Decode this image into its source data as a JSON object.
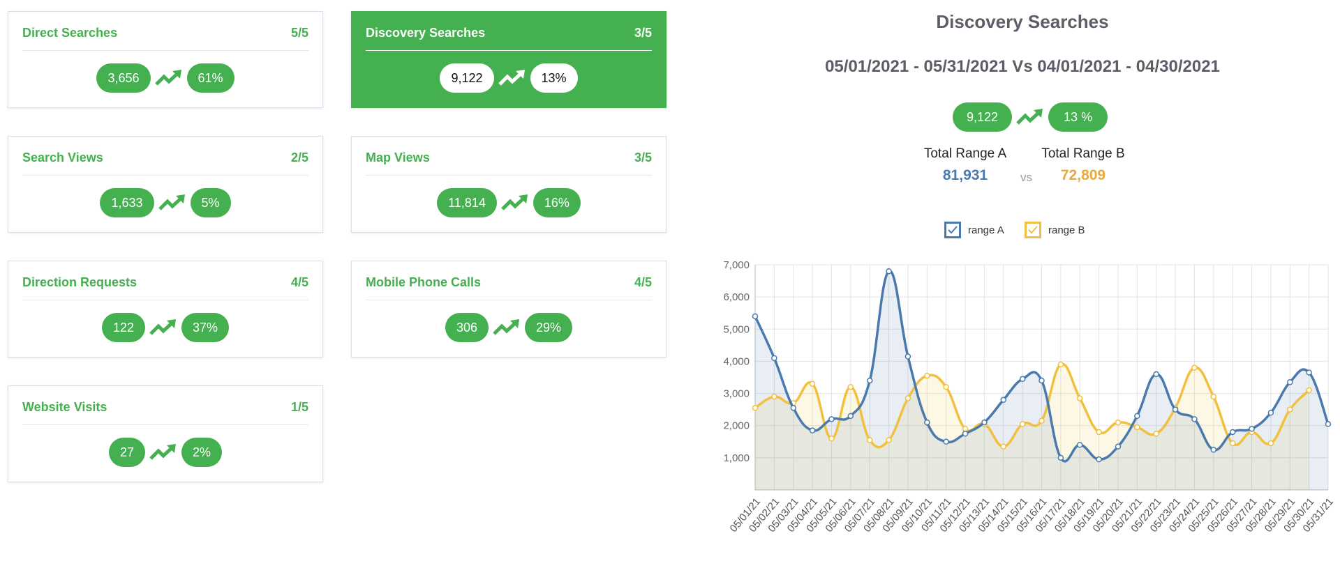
{
  "cards": [
    {
      "title": "Direct Searches",
      "score": "5/5",
      "value": "3,656",
      "change": "61%"
    },
    {
      "title": "Discovery Searches",
      "score": "3/5",
      "value": "9,122",
      "change": "13%"
    },
    {
      "title": "Search Views",
      "score": "2/5",
      "value": "1,633",
      "change": "5%"
    },
    {
      "title": "Map Views",
      "score": "3/5",
      "value": "11,814",
      "change": "16%"
    },
    {
      "title": "Direction Requests",
      "score": "4/5",
      "value": "122",
      "change": "37%"
    },
    {
      "title": "Mobile Phone Calls",
      "score": "4/5",
      "value": "306",
      "change": "29%"
    },
    {
      "title": "Website Visits",
      "score": "1/5",
      "value": "27",
      "change": "2%"
    }
  ],
  "panel": {
    "title": "Discovery Searches",
    "date_range": "05/01/2021 - 05/31/2021 Vs 04/01/2021 - 04/30/2021",
    "value": "9,122",
    "change": "13 %",
    "total_a_label": "Total Range A",
    "total_a": "81,931",
    "vs": "vs",
    "total_b_label": "Total Range B",
    "total_b": "72,809"
  },
  "colors": {
    "green": "#44b04f",
    "range_a": "#4a7aad",
    "range_b": "#f2c03f",
    "total_a": "#4a7aad",
    "total_b": "#e9a93a"
  },
  "chart_data": {
    "type": "line",
    "x": [
      "05/01/21",
      "05/02/21",
      "05/03/21",
      "05/04/21",
      "05/05/21",
      "05/06/21",
      "05/07/21",
      "05/08/21",
      "05/09/21",
      "05/10/21",
      "05/11/21",
      "05/12/21",
      "05/13/21",
      "05/14/21",
      "05/15/21",
      "05/16/21",
      "05/17/21",
      "05/18/21",
      "05/19/21",
      "05/20/21",
      "05/21/21",
      "05/22/21",
      "05/23/21",
      "05/24/21",
      "05/25/21",
      "05/26/21",
      "05/27/21",
      "05/28/21",
      "05/29/21",
      "05/30/21",
      "05/31/21"
    ],
    "series": [
      {
        "name": "range A",
        "values": [
          5400,
          4100,
          2550,
          1850,
          2200,
          2300,
          3400,
          6800,
          4150,
          2100,
          1500,
          1750,
          2100,
          2800,
          3450,
          3400,
          1000,
          1400,
          950,
          1350,
          2300,
          3600,
          2500,
          2200,
          1250,
          1800,
          1900,
          2400,
          3350,
          3650,
          2050
        ]
      },
      {
        "name": "range B",
        "values": [
          2550,
          2900,
          2700,
          3300,
          1600,
          3200,
          1550,
          1550,
          2850,
          3550,
          3200,
          1900,
          2050,
          1350,
          2050,
          2150,
          3900,
          2850,
          1800,
          2100,
          1950,
          1750,
          2550,
          3800,
          2900,
          1450,
          1800,
          1450,
          2500,
          3100,
          null
        ]
      }
    ],
    "yticks": [
      1000,
      2000,
      3000,
      4000,
      5000,
      6000,
      7000
    ],
    "ytick_labels": [
      "1,000",
      "2,000",
      "3,000",
      "4,000",
      "5,000",
      "6,000",
      "7,000"
    ],
    "ylim": [
      0,
      7000
    ],
    "grid": true,
    "legend_position": "top-center"
  }
}
